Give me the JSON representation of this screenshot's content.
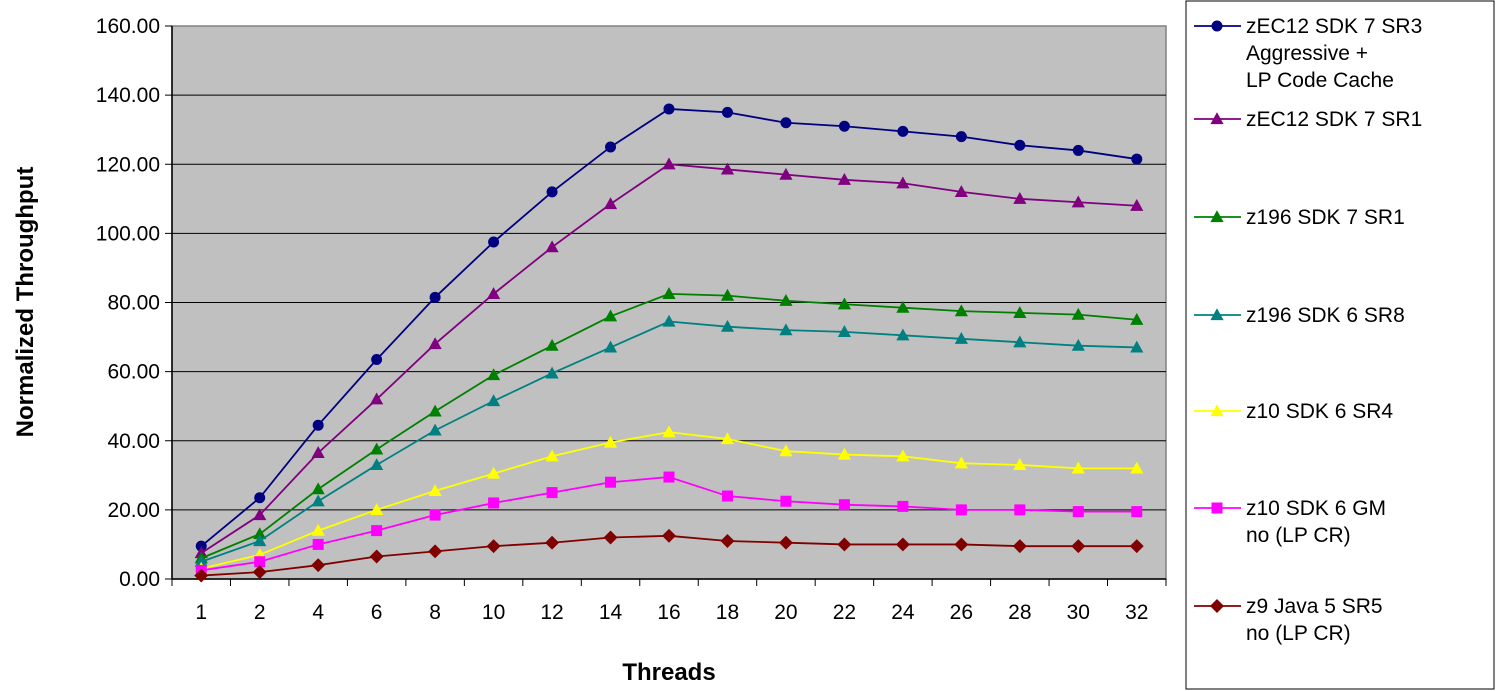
{
  "chart_data": {
    "type": "line",
    "title": "",
    "xlabel": "Threads",
    "ylabel": "Normalized Throughput",
    "categories": [
      "1",
      "2",
      "4",
      "6",
      "8",
      "10",
      "12",
      "14",
      "16",
      "18",
      "20",
      "22",
      "24",
      "26",
      "28",
      "30",
      "32"
    ],
    "ylim": [
      0,
      160
    ],
    "ytick_step": 20,
    "ytick_labels": [
      "0.00",
      "20.00",
      "40.00",
      "60.00",
      "80.00",
      "100.00",
      "120.00",
      "140.00",
      "160.00"
    ],
    "grid": true,
    "legend_position": "right",
    "plot_background": "#c0c0c0",
    "series": [
      {
        "name": "zEC12 SDK 7 SR3 Aggressive + LP Code Cache",
        "legend_lines": [
          "zEC12 SDK 7 SR3",
          "Aggressive +",
          "LP Code Cache"
        ],
        "color": "#000080",
        "marker": "circle",
        "values": [
          9.5,
          23.5,
          44.5,
          63.5,
          81.5,
          97.5,
          112,
          125,
          136,
          135,
          132,
          131,
          129.5,
          128,
          125.5,
          124,
          121.5
        ]
      },
      {
        "name": "zEC12 SDK 7 SR1",
        "legend_lines": [
          "zEC12 SDK 7 SR1"
        ],
        "color": "#800080",
        "marker": "triangle",
        "values": [
          7.5,
          18.5,
          36.5,
          52,
          68,
          82.5,
          96,
          108.5,
          120,
          118.5,
          117,
          115.5,
          114.5,
          112,
          110,
          109,
          108
        ]
      },
      {
        "name": "z196 SDK 7 SR1",
        "legend_lines": [
          "z196 SDK 7 SR1"
        ],
        "color": "#008000",
        "marker": "triangle",
        "values": [
          6,
          13,
          26,
          37.5,
          48.5,
          59,
          67.5,
          76,
          82.5,
          82,
          80.5,
          79.5,
          78.5,
          77.5,
          77,
          76.5,
          75
        ]
      },
      {
        "name": "z196 SDK 6 SR8",
        "legend_lines": [
          "z196 SDK 6 SR8"
        ],
        "color": "#008080",
        "marker": "triangle",
        "values": [
          5,
          11,
          22.5,
          33,
          43,
          51.5,
          59.5,
          67,
          74.5,
          73,
          72,
          71.5,
          70.5,
          69.5,
          68.5,
          67.5,
          67
        ]
      },
      {
        "name": "z10 SDK 6 SR4",
        "legend_lines": [
          "z10 SDK 6 SR4"
        ],
        "color": "#ffff00",
        "marker": "triangle",
        "values": [
          3,
          7,
          14,
          20,
          25.5,
          30.5,
          35.5,
          39.5,
          42.5,
          40.5,
          37,
          36,
          35.5,
          33.5,
          33,
          32,
          32
        ]
      },
      {
        "name": "z10 SDK 6 GM no (LP CR)",
        "legend_lines": [
          "z10 SDK 6 GM",
          "no (LP CR)"
        ],
        "color": "#ff00ff",
        "marker": "square",
        "values": [
          2.5,
          5,
          10,
          14,
          18.5,
          22,
          25,
          28,
          29.5,
          24,
          22.5,
          21.5,
          21,
          20,
          20,
          19.5,
          19.5
        ]
      },
      {
        "name": "z9 Java 5 SR5 no (LP CR)",
        "legend_lines": [
          "z9 Java 5 SR5",
          "no (LP CR)"
        ],
        "color": "#800000",
        "marker": "diamond",
        "values": [
          1,
          2,
          4,
          6.5,
          8,
          9.5,
          10.5,
          12,
          12.5,
          11,
          10.5,
          10,
          10,
          10,
          9.5,
          9.5,
          9.5
        ]
      }
    ]
  }
}
